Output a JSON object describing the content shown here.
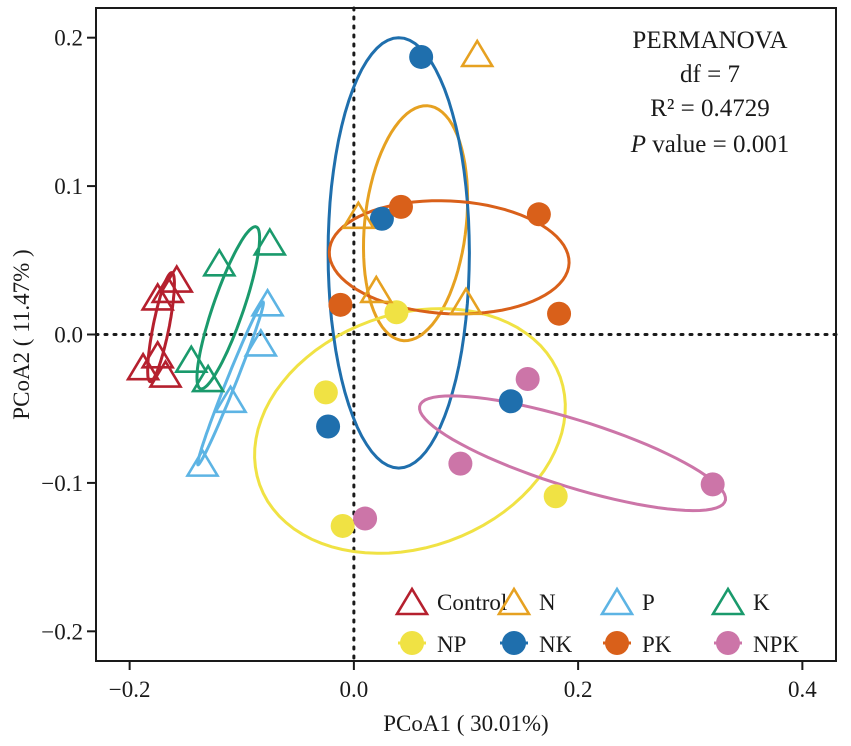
{
  "chart_data": {
    "type": "scatter",
    "xlabel": "PCoA1 ( 30.01%)",
    "ylabel": "PCoA2 ( 11.47% )",
    "xlim": [
      -0.23,
      0.43
    ],
    "ylim": [
      -0.22,
      0.22
    ],
    "x_ticks": [
      -0.2,
      0.0,
      0.2,
      0.4
    ],
    "x_tick_labels": [
      "−0.2",
      "0.0",
      "0.2",
      "0.4"
    ],
    "y_ticks": [
      -0.2,
      -0.1,
      0.0,
      0.1,
      0.2
    ],
    "y_tick_labels": [
      "−0.2",
      "−0.1",
      "0.0",
      "0.1",
      "0.2"
    ],
    "annotation": {
      "title": "PERMANOVA",
      "df": "df = 7",
      "r2": "R² = 0.4729",
      "p_label": "P",
      "p_rest": " value = 0.001"
    },
    "series": [
      {
        "name": "Control",
        "marker": "triangle",
        "color": "#b5202e",
        "points": [
          [
            -0.188,
            -0.022
          ],
          [
            -0.175,
            0.025
          ],
          [
            -0.166,
            0.03
          ],
          [
            -0.158,
            0.037
          ],
          [
            -0.175,
            -0.014
          ],
          [
            -0.168,
            -0.027
          ]
        ],
        "ellipse": {
          "cx": -0.172,
          "cy": 0.005,
          "rx": 0.038,
          "ry": 0.007,
          "angle": 75
        }
      },
      {
        "name": "N",
        "marker": "triangle",
        "color": "#e6a121",
        "points": [
          [
            0.11,
            0.189
          ],
          [
            0.004,
            0.08
          ],
          [
            0.02,
            0.03
          ],
          [
            0.1,
            0.022
          ]
        ],
        "ellipse": {
          "cx": 0.055,
          "cy": 0.075,
          "rx": 0.08,
          "ry": 0.045,
          "angle": 80
        }
      },
      {
        "name": "P",
        "marker": "triangle",
        "color": "#5db4e4",
        "points": [
          [
            -0.077,
            0.021
          ],
          [
            -0.083,
            -0.006
          ],
          [
            -0.11,
            -0.044
          ],
          [
            -0.135,
            -0.087
          ]
        ],
        "ellipse": {
          "cx": -0.11,
          "cy": -0.033,
          "rx": 0.062,
          "ry": 0.004,
          "angle": 62
        }
      },
      {
        "name": "K",
        "marker": "triangle",
        "color": "#1a9a6c",
        "points": [
          [
            -0.075,
            0.062
          ],
          [
            -0.12,
            0.048
          ],
          [
            -0.145,
            -0.017
          ],
          [
            -0.13,
            -0.03
          ]
        ],
        "ellipse": {
          "cx": -0.112,
          "cy": 0.018,
          "rx": 0.06,
          "ry": 0.013,
          "angle": 65
        }
      },
      {
        "name": "NP",
        "marker": "circle",
        "color": "#f0e244",
        "points": [
          [
            0.038,
            0.015
          ],
          [
            -0.025,
            -0.039
          ],
          [
            -0.01,
            -0.129
          ],
          [
            0.18,
            -0.109
          ]
        ],
        "ellipse": {
          "cx": 0.05,
          "cy": -0.065,
          "rx": 0.14,
          "ry": 0.08,
          "angle": 10
        }
      },
      {
        "name": "NK",
        "marker": "circle",
        "color": "#1f6fad",
        "points": [
          [
            0.06,
            0.187
          ],
          [
            0.025,
            0.078
          ],
          [
            -0.023,
            -0.062
          ],
          [
            0.14,
            -0.045
          ]
        ],
        "ellipse": {
          "cx": 0.04,
          "cy": 0.055,
          "rx": 0.145,
          "ry": 0.063,
          "angle": 90
        }
      },
      {
        "name": "PK",
        "marker": "circle",
        "color": "#d9601a",
        "points": [
          [
            0.042,
            0.086
          ],
          [
            0.165,
            0.081
          ],
          [
            -0.012,
            0.02
          ],
          [
            0.183,
            0.014
          ]
        ],
        "ellipse": {
          "cx": 0.085,
          "cy": 0.052,
          "rx": 0.107,
          "ry": 0.038,
          "angle": -2
        }
      },
      {
        "name": "NPK",
        "marker": "circle",
        "color": "#cc75a8",
        "points": [
          [
            0.155,
            -0.03
          ],
          [
            0.095,
            -0.087
          ],
          [
            0.01,
            -0.124
          ],
          [
            0.32,
            -0.101
          ]
        ],
        "ellipse": {
          "cx": 0.195,
          "cy": -0.08,
          "rx": 0.14,
          "ry": 0.023,
          "angle": -13
        }
      }
    ]
  }
}
